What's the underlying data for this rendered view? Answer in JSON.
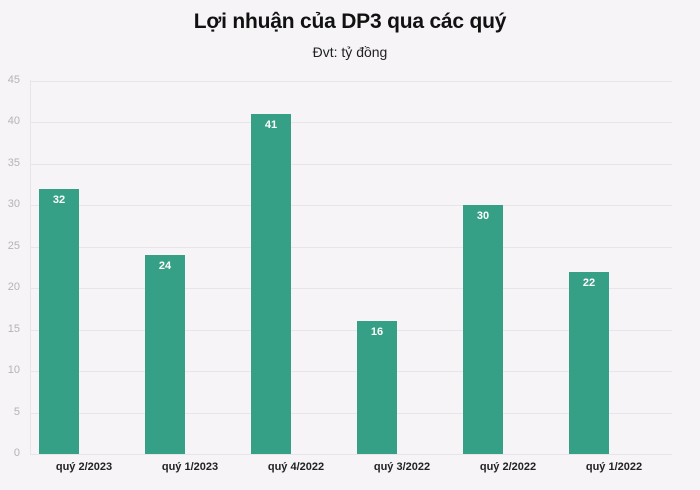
{
  "header": {
    "title": "Lợi nhuận của DP3 qua các quý",
    "subtitle": "Đvt: tỷ đồng"
  },
  "colors": {
    "bar": "#35a086",
    "background": "#f6f4f7",
    "gridline": "#e8e5ea"
  },
  "chart_data": {
    "type": "bar",
    "title": "Lợi nhuận của DP3 qua các quý",
    "subtitle": "Đvt: tỷ đồng",
    "categories": [
      "quý 2/2023",
      "quý 1/2023",
      "quý 4/2022",
      "quý 3/2022",
      "quý 2/2022",
      "quý 1/2022"
    ],
    "values": [
      32,
      24,
      41,
      16,
      30,
      22
    ],
    "xlabel": "",
    "ylabel": "",
    "ylim": [
      0,
      45
    ],
    "yticks": [
      0,
      5,
      10,
      15,
      20,
      25,
      30,
      35,
      40,
      45
    ],
    "grid": true,
    "legend": "none",
    "data_labels": true
  }
}
